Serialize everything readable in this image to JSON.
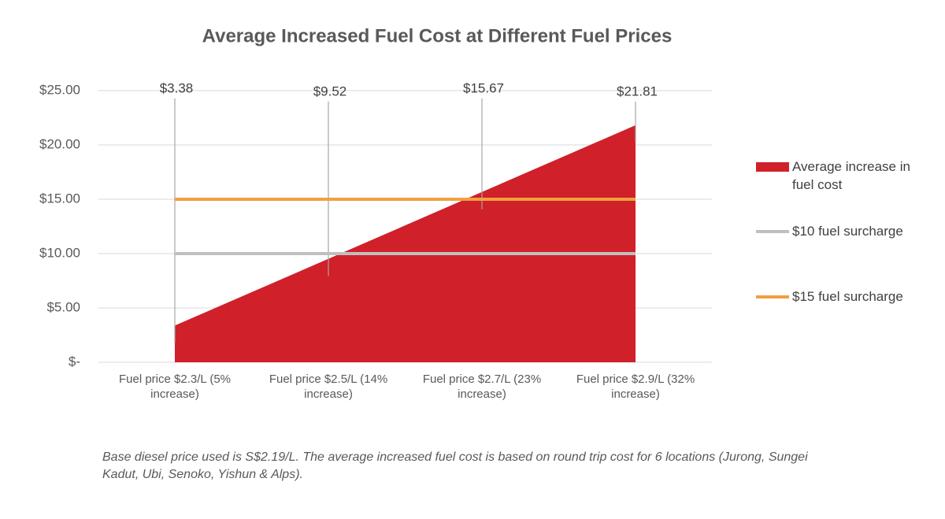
{
  "chart_data": {
    "type": "area",
    "title": "Average Increased Fuel Cost at Different Fuel Prices",
    "categories": [
      "Fuel price $2.3/L (5% increase)",
      "Fuel price $2.5/L (14% increase)",
      "Fuel price $2.7/L (23% increase)",
      "Fuel price $2.9/L (32% increase)"
    ],
    "series": [
      {
        "name": "Average increase in fuel cost",
        "type": "area",
        "color": "#d0202a",
        "values": [
          3.38,
          9.52,
          15.67,
          21.81
        ],
        "value_labels": [
          "$3.38",
          "$9.52",
          "$15.67",
          "$21.81"
        ]
      },
      {
        "name": "$10 fuel surcharge",
        "type": "line",
        "color": "#bfbfbf",
        "values": [
          10,
          10,
          10,
          10
        ]
      },
      {
        "name": "$15 fuel surcharge",
        "type": "line",
        "color": "#f0a040",
        "values": [
          15,
          15,
          15,
          15
        ]
      }
    ],
    "ylim": [
      0,
      25
    ],
    "yticks": [
      {
        "value": 0,
        "label": "$-"
      },
      {
        "value": 5,
        "label": "$5.00"
      },
      {
        "value": 10,
        "label": "$10.00"
      },
      {
        "value": 15,
        "label": "$15.00"
      },
      {
        "value": 20,
        "label": "$20.00"
      },
      {
        "value": 25,
        "label": "$25.00"
      }
    ],
    "grid": true,
    "legend": "right",
    "footnote": "Base diesel price used is S$2.19/L. The average increased fuel cost is based on round trip cost for 6 locations (Jurong, Sungei Kadut, Ubi, Senoko, Yishun & Alps)."
  }
}
